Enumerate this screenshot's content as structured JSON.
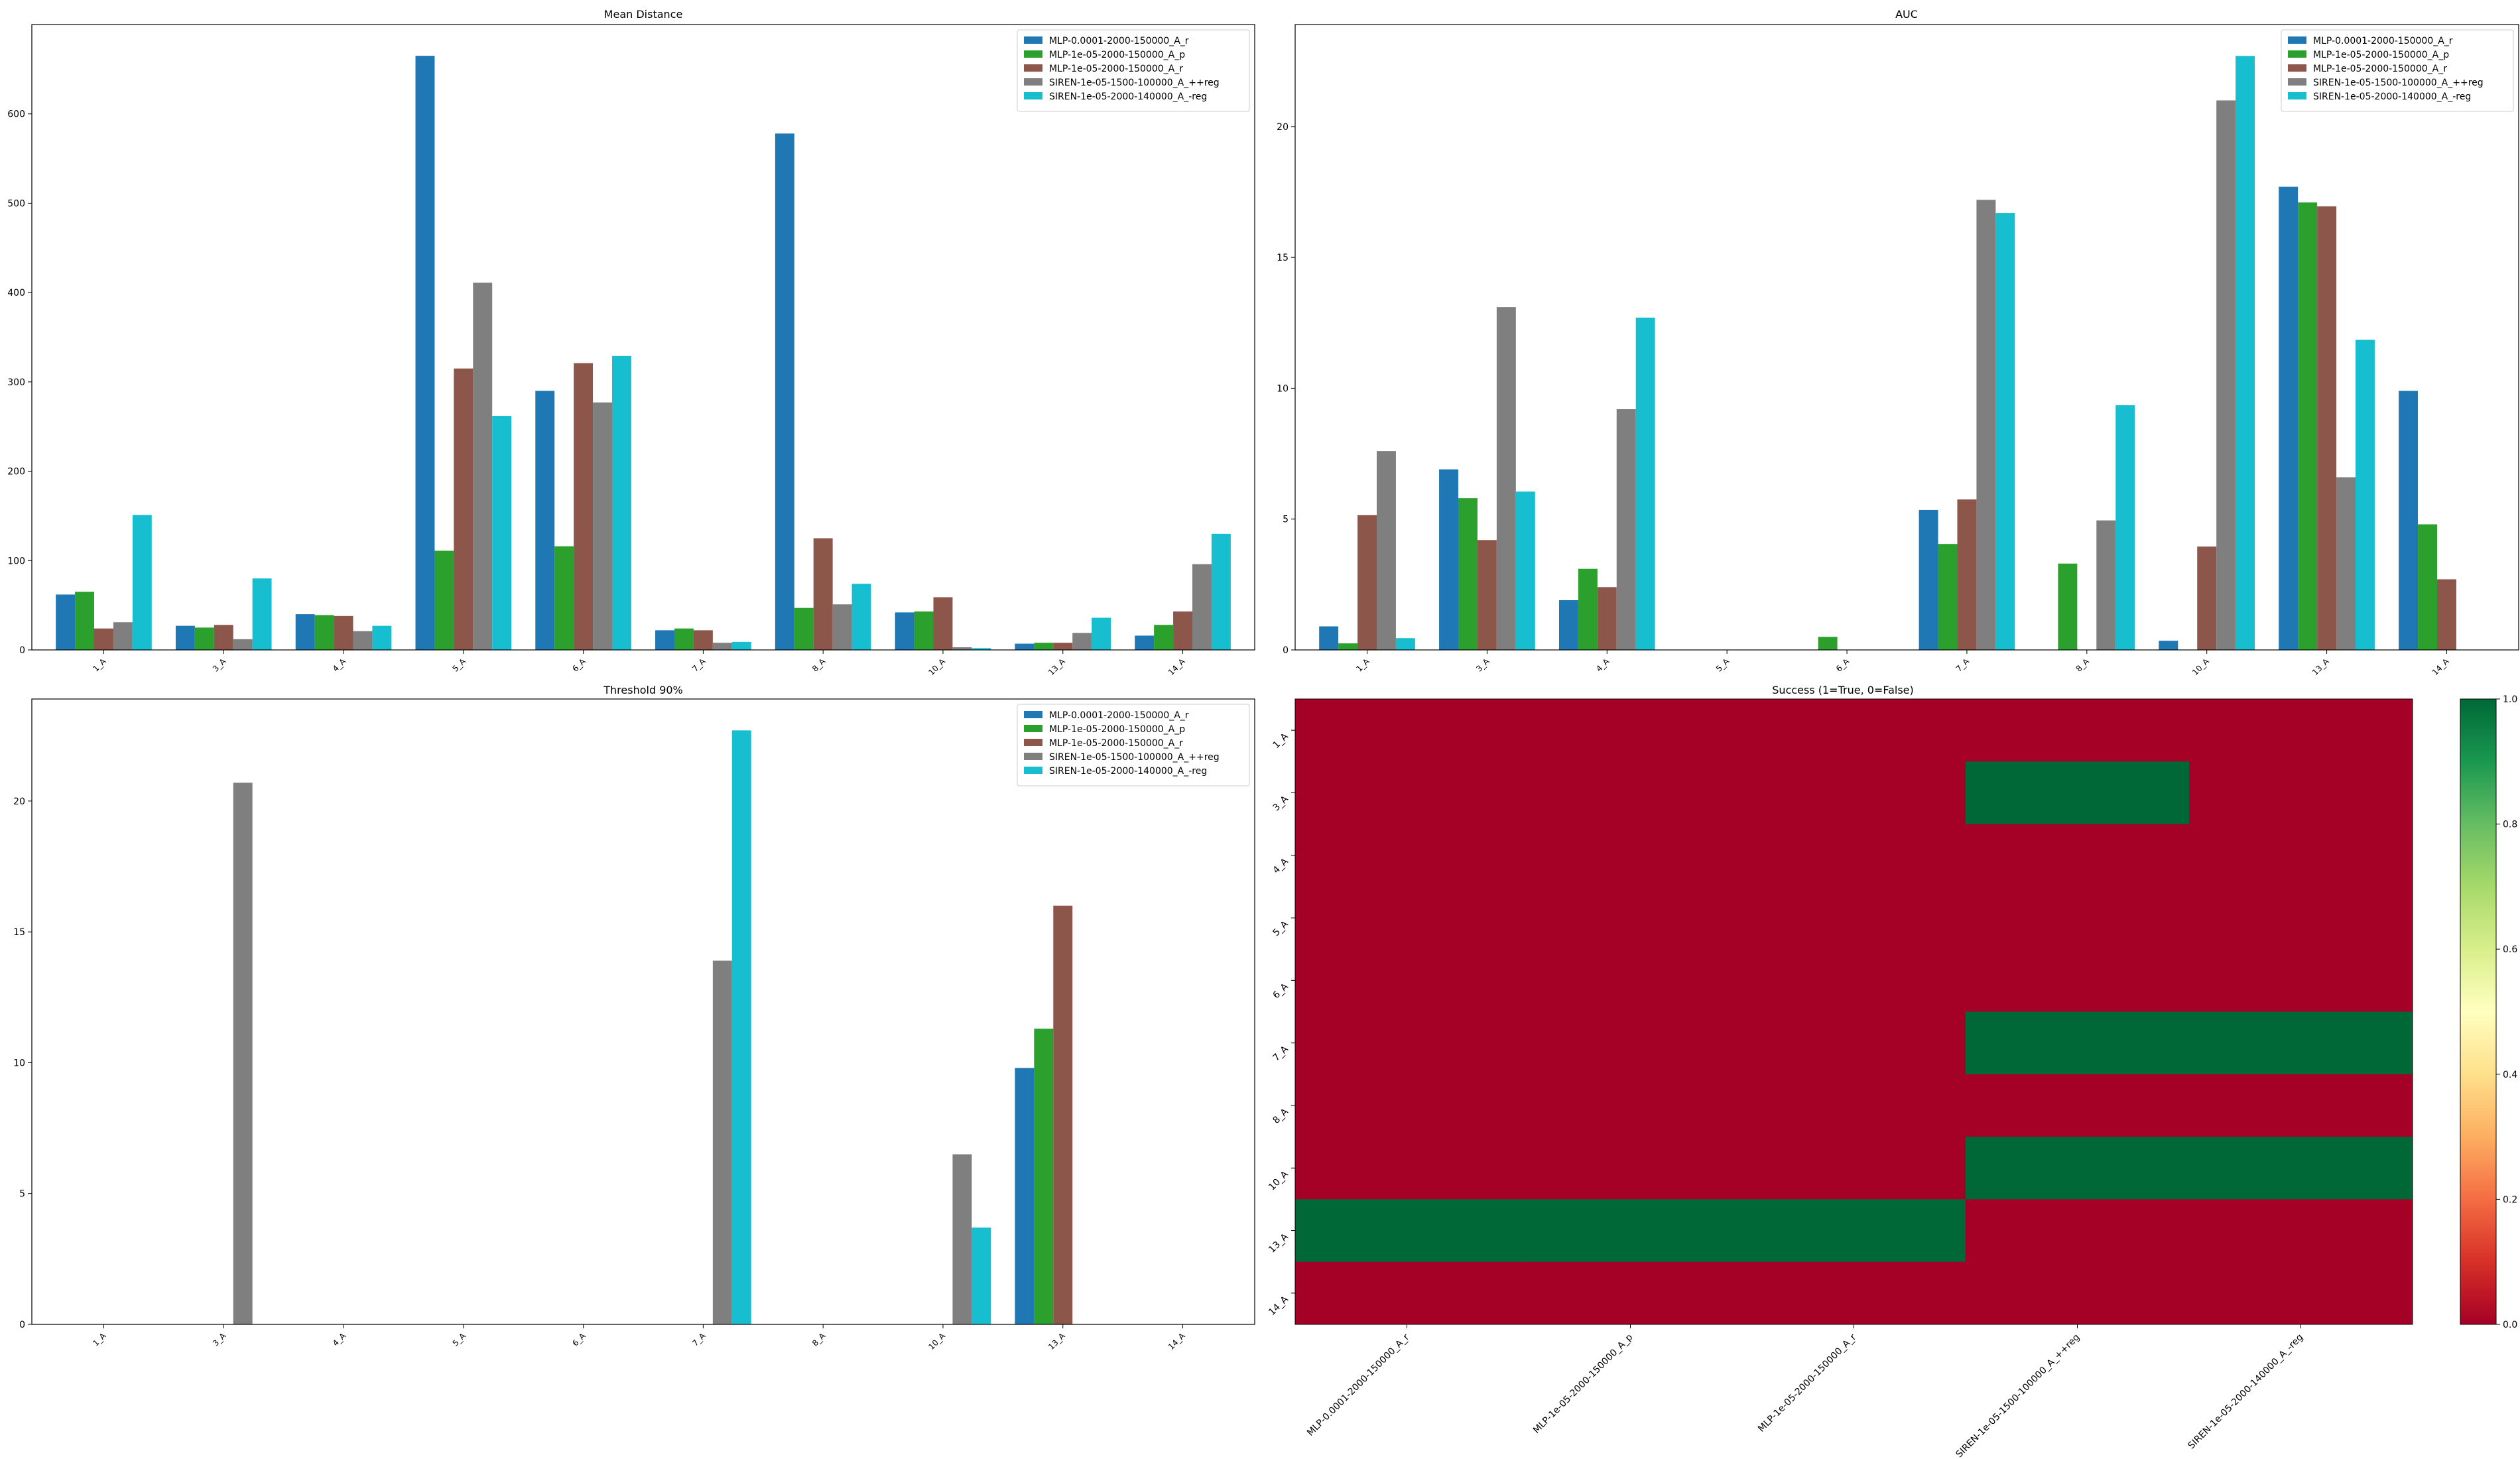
{
  "colors": {
    "blue": "#1f77b4",
    "green": "#2ca02c",
    "brown": "#8c564b",
    "gray": "#7f7f7f",
    "cyan": "#17becf",
    "fail": "#a50026",
    "success": "#006837"
  },
  "chart_data": [
    {
      "type": "bar",
      "title": "Mean Distance",
      "xlabel": "",
      "ylabel": "",
      "categories": [
        "1_A",
        "3_A",
        "4_A",
        "5_A",
        "6_A",
        "7_A",
        "8_A",
        "10_A",
        "13_A",
        "14_A"
      ],
      "ylim": [
        0,
        700
      ],
      "yticks": [
        0,
        100,
        200,
        300,
        400,
        500,
        600
      ],
      "legend_position": "top-right",
      "series": [
        {
          "name": "MLP-0.0001-2000-150000_A_r",
          "color": "#1f77b4",
          "values": [
            62,
            27,
            40,
            665,
            290,
            22,
            578,
            42,
            7,
            16
          ]
        },
        {
          "name": "MLP-1e-05-2000-150000_A_p",
          "color": "#2ca02c",
          "values": [
            65,
            25,
            39,
            111,
            116,
            24,
            47,
            43,
            8,
            28
          ]
        },
        {
          "name": "MLP-1e-05-2000-150000_A_r",
          "color": "#8c564b",
          "values": [
            24,
            28,
            38,
            315,
            321,
            22,
            125,
            59,
            8,
            43
          ]
        },
        {
          "name": "SIREN-1e-05-1500-100000_A_++reg",
          "color": "#7f7f7f",
          "values": [
            31,
            12,
            21,
            411,
            277,
            8,
            51,
            3,
            19,
            96
          ]
        },
        {
          "name": "SIREN-1e-05-2000-140000_A_-reg",
          "color": "#17becf",
          "values": [
            151,
            80,
            27,
            262,
            329,
            9,
            74,
            2,
            36,
            130
          ]
        }
      ]
    },
    {
      "type": "bar",
      "title": "AUC",
      "xlabel": "",
      "ylabel": "",
      "categories": [
        "1_A",
        "3_A",
        "4_A",
        "5_A",
        "6_A",
        "7_A",
        "8_A",
        "10_A",
        "13_A",
        "14_A"
      ],
      "ylim": [
        0,
        23.9
      ],
      "yticks": [
        0,
        5,
        10,
        15,
        20
      ],
      "legend_position": "top-right",
      "series": [
        {
          "name": "MLP-0.0001-2000-150000_A_r",
          "color": "#1f77b4",
          "values": [
            0.9,
            6.9,
            1.9,
            0,
            0,
            5.35,
            0,
            0.35,
            17.7,
            9.9
          ]
        },
        {
          "name": "MLP-1e-05-2000-150000_A_p",
          "color": "#2ca02c",
          "values": [
            0.25,
            5.8,
            3.1,
            0,
            0.5,
            4.05,
            3.3,
            0,
            17.1,
            4.8
          ]
        },
        {
          "name": "MLP-1e-05-2000-150000_A_r",
          "color": "#8c564b",
          "values": [
            5.15,
            4.2,
            2.4,
            0,
            0,
            5.75,
            0,
            3.95,
            16.95,
            2.7
          ]
        },
        {
          "name": "SIREN-1e-05-1500-100000_A_++reg",
          "color": "#7f7f7f",
          "values": [
            7.6,
            13.1,
            9.2,
            0,
            0,
            17.2,
            4.95,
            21.0,
            6.6,
            0
          ]
        },
        {
          "name": "SIREN-1e-05-2000-140000_A_-reg",
          "color": "#17becf",
          "values": [
            0.45,
            6.05,
            12.7,
            0,
            0,
            16.7,
            9.35,
            22.7,
            11.85,
            0
          ]
        }
      ]
    },
    {
      "type": "bar",
      "title": "Threshold 90%",
      "xlabel": "",
      "ylabel": "",
      "categories": [
        "1_A",
        "3_A",
        "4_A",
        "5_A",
        "6_A",
        "7_A",
        "8_A",
        "10_A",
        "13_A",
        "14_A"
      ],
      "ylim": [
        0,
        23.9
      ],
      "yticks": [
        0,
        5,
        10,
        15,
        20
      ],
      "legend_position": "top-right",
      "series": [
        {
          "name": "MLP-0.0001-2000-150000_A_r",
          "color": "#1f77b4",
          "values": [
            0,
            0,
            0,
            0,
            0,
            0,
            0,
            0,
            9.8,
            0
          ]
        },
        {
          "name": "MLP-1e-05-2000-150000_A_p",
          "color": "#2ca02c",
          "values": [
            0,
            0,
            0,
            0,
            0,
            0,
            0,
            0,
            11.3,
            0
          ]
        },
        {
          "name": "MLP-1e-05-2000-150000_A_r",
          "color": "#8c564b",
          "values": [
            0,
            0,
            0,
            0,
            0,
            0,
            0,
            0,
            16.0,
            0
          ]
        },
        {
          "name": "SIREN-1e-05-1500-100000_A_++reg",
          "color": "#7f7f7f",
          "values": [
            0,
            20.7,
            0,
            0,
            0,
            13.9,
            0,
            6.5,
            0,
            0
          ]
        },
        {
          "name": "SIREN-1e-05-2000-140000_A_-reg",
          "color": "#17becf",
          "values": [
            0,
            0,
            0,
            0,
            0,
            22.7,
            0,
            3.7,
            0,
            0
          ]
        }
      ]
    },
    {
      "type": "heatmap",
      "title": "Success (1=True, 0=False)",
      "x_labels": [
        "MLP-0.0001-2000-150000_A_r",
        "MLP-1e-05-2000-150000_A_p",
        "MLP-1e-05-2000-150000_A_r",
        "SIREN-1e-05-1500-100000_A_++reg",
        "SIREN-1e-05-2000-140000_A_-reg"
      ],
      "y_labels": [
        "1_A",
        "3_A",
        "4_A",
        "5_A",
        "6_A",
        "7_A",
        "8_A",
        "10_A",
        "13_A",
        "14_A"
      ],
      "values": [
        [
          0,
          0,
          0,
          0,
          0
        ],
        [
          0,
          0,
          0,
          1,
          0
        ],
        [
          0,
          0,
          0,
          0,
          0
        ],
        [
          0,
          0,
          0,
          0,
          0
        ],
        [
          0,
          0,
          0,
          0,
          0
        ],
        [
          0,
          0,
          0,
          1,
          1
        ],
        [
          0,
          0,
          0,
          0,
          0
        ],
        [
          0,
          0,
          0,
          1,
          1
        ],
        [
          1,
          1,
          1,
          0,
          0
        ],
        [
          0,
          0,
          0,
          0,
          0
        ]
      ],
      "colormap": "RdYlGn",
      "colorbar": {
        "range": [
          0,
          1
        ],
        "ticks": [
          "0.0",
          "0.2",
          "0.4",
          "0.6",
          "0.8",
          "1.0"
        ]
      }
    }
  ]
}
